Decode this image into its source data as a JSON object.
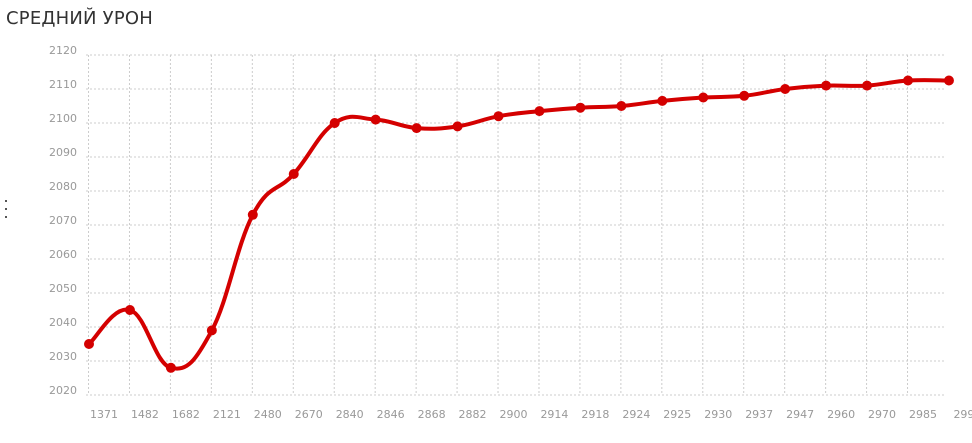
{
  "chart_data": {
    "type": "line",
    "title": "СРЕДНИЙ УРОН",
    "xlabel": "",
    "ylabel": "",
    "categories": [
      "1371",
      "1482",
      "1682",
      "2121",
      "2480",
      "2670",
      "2840",
      "2846",
      "2868",
      "2882",
      "2900",
      "2914",
      "2918",
      "2924",
      "2925",
      "2930",
      "2937",
      "2947",
      "2960",
      "2970",
      "2985",
      "299"
    ],
    "series": [
      {
        "values": [
          2035,
          2045,
          2028,
          2039,
          2073,
          2085,
          2100,
          2101,
          2098.5,
          2099,
          2102,
          2103.5,
          2104.5,
          2105,
          2106.5,
          2107.5,
          2108,
          2110,
          2111,
          2111,
          2112.5,
          2112.5
        ]
      }
    ],
    "ylim": [
      2020,
      2120
    ],
    "yticks": [
      2120,
      2110,
      2100,
      2090,
      2080,
      2070,
      2060,
      2050,
      2040,
      2030,
      2020
    ],
    "grid": true,
    "colors": {
      "line": "#d40000",
      "grid": "#cccccc",
      "text": "#999999",
      "title": "#333333"
    }
  }
}
